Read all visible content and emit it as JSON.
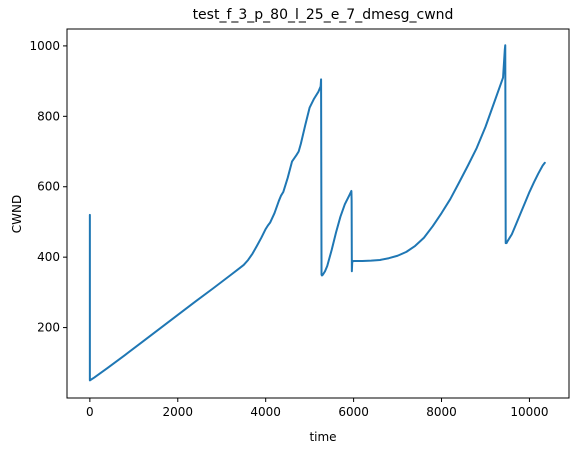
{
  "chart_data": {
    "type": "line",
    "title": "test_f_3_p_80_l_25_e_7_dmesg_cwnd",
    "xlabel": "time",
    "ylabel": "CWND",
    "xlim": [
      -520,
      10900
    ],
    "ylim": [
      0,
      1048
    ],
    "xticks": [
      0,
      2000,
      4000,
      6000,
      8000,
      10000
    ],
    "yticks": [
      200,
      400,
      600,
      800,
      1000
    ],
    "grid": false,
    "color": "#1f77b4",
    "series": [
      {
        "x": [
          0,
          0,
          0,
          100,
          400,
          800,
          1200,
          1600,
          2000,
          2400,
          2800,
          3200,
          3420,
          3500,
          3600,
          3700,
          3800,
          3900,
          4000,
          4050,
          4100,
          4200,
          4300,
          4350,
          4400,
          4500,
          4600,
          4700,
          4750,
          4800,
          4900,
          5000,
          5100,
          5200,
          5250,
          5260,
          5270,
          5280,
          5300,
          5350,
          5400,
          5500,
          5600,
          5700,
          5800,
          5900,
          5950,
          5955,
          5960,
          5970,
          5975,
          5980,
          6000,
          6200,
          6400,
          6600,
          6800,
          7000,
          7200,
          7400,
          7600,
          7800,
          8000,
          8200,
          8400,
          8600,
          8800,
          9000,
          9200,
          9400,
          9440,
          9450,
          9460,
          9480,
          9500,
          9600,
          9700,
          9800,
          9900,
          10000,
          10100,
          10200,
          10300,
          10350
        ],
        "y": [
          520,
          50,
          50,
          58,
          85,
          122,
          160,
          198,
          236,
          274,
          311,
          349,
          370,
          378,
          392,
          410,
          432,
          455,
          480,
          490,
          498,
          525,
          560,
          575,
          585,
          625,
          672,
          690,
          700,
          722,
          775,
          825,
          850,
          870,
          885,
          905,
          350,
          348,
          350,
          360,
          375,
          420,
          470,
          515,
          550,
          575,
          588,
          560,
          360,
          390,
          388,
          388,
          389,
          389,
          390,
          392,
          397,
          404,
          415,
          432,
          455,
          488,
          525,
          565,
          612,
          660,
          710,
          770,
          840,
          910,
          990,
          1002,
          440,
          440,
          445,
          465,
          495,
          525,
          555,
          585,
          612,
          637,
          660,
          668
        ]
      }
    ]
  }
}
